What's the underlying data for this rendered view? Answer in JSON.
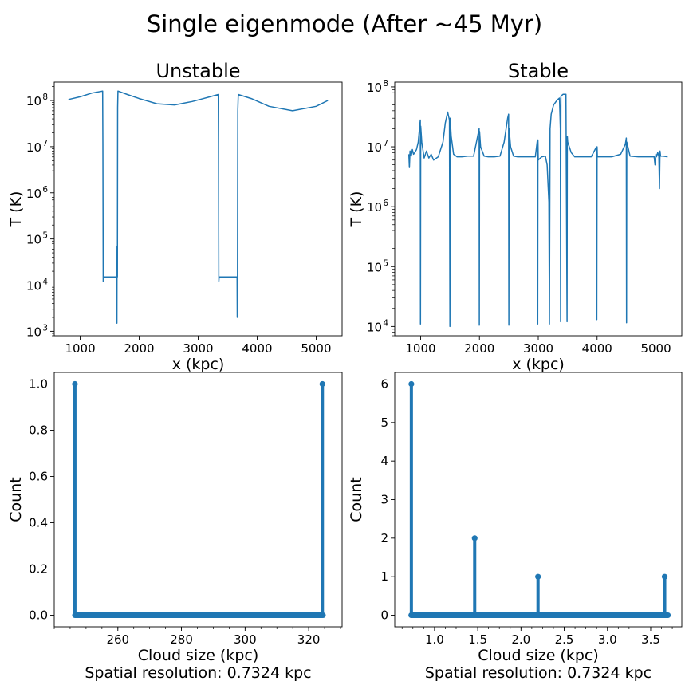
{
  "figure": {
    "suptitle": "Single eigenmode (After ~45 Myr)"
  },
  "chart_data": [
    {
      "id": "p1",
      "type": "line",
      "title": "Unstable",
      "xlabel": "x (kpc)",
      "ylabel": "T (K)",
      "yscale": "log",
      "xlim": [
        560,
        5440
      ],
      "ylim": [
        800,
        250000000
      ],
      "xticks": [
        1000,
        2000,
        3000,
        4000,
        5000
      ],
      "yticks": [
        {
          "mant": "10",
          "exp": "3",
          "value": 1000
        },
        {
          "mant": "10",
          "exp": "4",
          "value": 10000
        },
        {
          "mant": "10",
          "exp": "5",
          "value": 100000
        },
        {
          "mant": "10",
          "exp": "6",
          "value": 1000000
        },
        {
          "mant": "10",
          "exp": "7",
          "value": 10000000
        },
        {
          "mant": "10",
          "exp": "8",
          "value": 100000000
        }
      ],
      "color": "#1f77b4",
      "x": [
        800,
        1000,
        1200,
        1380,
        1385,
        1390,
        1395,
        1620,
        1622,
        1625,
        1630,
        1635,
        1640,
        1800,
        2000,
        2300,
        2600,
        2900,
        3200,
        3340,
        3345,
        3350,
        3355,
        3660,
        3663,
        3667,
        3672,
        3680,
        3900,
        4200,
        4600,
        5000,
        5200
      ],
      "y": [
        105000000,
        120000000,
        145000000,
        160000000,
        12000000,
        12000,
        15000,
        15000,
        1500,
        70000,
        15000,
        70000000,
        160000000,
        135000000,
        110000000,
        85000000,
        80000000,
        95000000,
        120000000,
        135000000,
        12000000,
        12000,
        15000,
        15000,
        2000,
        14000,
        60000000,
        135000000,
        110000000,
        75000000,
        60000000,
        75000000,
        100000000
      ]
    },
    {
      "id": "p2",
      "type": "line",
      "title": "Stable",
      "xlabel": "x (kpc)",
      "ylabel": "T (K)",
      "yscale": "log",
      "xlim": [
        560,
        5440
      ],
      "ylim": [
        7000,
        120000000
      ],
      "xticks": [
        1000,
        2000,
        3000,
        4000,
        5000
      ],
      "yticks": [
        {
          "mant": "10",
          "exp": "4",
          "value": 10000
        },
        {
          "mant": "10",
          "exp": "5",
          "value": 100000
        },
        {
          "mant": "10",
          "exp": "6",
          "value": 1000000
        },
        {
          "mant": "10",
          "exp": "7",
          "value": 10000000
        },
        {
          "mant": "10",
          "exp": "8",
          "value": 100000000
        }
      ],
      "color": "#1f77b4",
      "x": [
        800,
        810,
        820,
        840,
        860,
        880,
        900,
        930,
        960,
        980,
        995,
        998,
        1002,
        1020,
        1060,
        1100,
        1140,
        1180,
        1220,
        1300,
        1380,
        1420,
        1460,
        1490,
        1498,
        1502,
        1520,
        1560,
        1620,
        1700,
        1800,
        1900,
        1970,
        1995,
        1998,
        2002,
        2020,
        2080,
        2150,
        2250,
        2350,
        2420,
        2480,
        2496,
        2500,
        2504,
        2530,
        2580,
        2650,
        2750,
        2850,
        2950,
        2985,
        2990,
        2994,
        3000,
        3060,
        3120,
        3150,
        3170,
        3180,
        3190,
        3200,
        3220,
        3260,
        3320,
        3360,
        3375,
        3380,
        3385,
        3420,
        3470,
        3490,
        3494,
        3500,
        3560,
        3620,
        3700,
        3800,
        3900,
        3990,
        3995,
        4000,
        4005,
        4100,
        4250,
        4400,
        4480,
        4496,
        4500,
        4504,
        4560,
        4700,
        4850,
        4970,
        4985,
        5000,
        5010,
        5030,
        5050,
        5060,
        5070,
        5080,
        5120,
        5200
      ],
      "y": [
        7500000,
        4500000,
        8500000,
        7000000,
        9000000,
        7500000,
        8000000,
        9000000,
        12000000,
        20000000,
        28000000,
        11000,
        22000000,
        12000000,
        6500000,
        8500000,
        6500000,
        7500000,
        6000000,
        6800000,
        12000000,
        25000000,
        38000000,
        28000000,
        10000,
        30000000,
        15000000,
        7500000,
        6800000,
        6800000,
        7000000,
        7000000,
        15000000,
        20000000,
        10500,
        18000000,
        10000000,
        7000000,
        6800000,
        6800000,
        7000000,
        12000000,
        30000000,
        35000000,
        10500,
        20000000,
        10000000,
        7000000,
        6800000,
        6800000,
        6800000,
        6800000,
        13000000,
        11000,
        13000000,
        6000000,
        6800000,
        7000000,
        5000000,
        2000000,
        1200000,
        11000,
        20000000,
        35000000,
        50000000,
        60000000,
        65000000,
        20000000,
        12000,
        70000000,
        75000000,
        75000000,
        12000,
        15000000,
        12000000,
        8000000,
        6800000,
        6800000,
        6800000,
        6800000,
        10000000,
        13000,
        10000000,
        6800000,
        6800000,
        6800000,
        7500000,
        11000000,
        14000000,
        11500,
        12000000,
        7000000,
        6800000,
        6800000,
        6800000,
        5000000,
        7500000,
        6800000,
        8000000,
        7000000,
        2000000,
        8500000,
        7000000,
        7000000,
        6800000
      ]
    },
    {
      "id": "p3",
      "type": "stem",
      "xlabel": "Cloud size (kpc)",
      "xlabel2": "Spatial resolution: 0.7324 kpc",
      "ylabel": "Count",
      "xlim": [
        240,
        330.5
      ],
      "ylim": [
        -0.05,
        1.05
      ],
      "xticks": [
        "260",
        "280",
        "300",
        "320"
      ],
      "xtick_values": [
        260,
        280,
        300,
        320
      ],
      "yticks": [
        "0.0",
        "0.2",
        "0.4",
        "0.6",
        "0.8",
        "1.0"
      ],
      "ytick_values": [
        0,
        0.2,
        0.4,
        0.6,
        0.8,
        1.0
      ],
      "color": "#1f77b4",
      "baseline_range": [
        246.5,
        324.5
      ],
      "points": [
        {
          "x": 246.5,
          "y": 1
        },
        {
          "x": 324.3,
          "y": 1
        }
      ]
    },
    {
      "id": "p4",
      "type": "stem",
      "xlabel": "Cloud size (kpc)",
      "xlabel2": "Spatial resolution: 0.7324 kpc",
      "ylabel": "Count",
      "xlim": [
        0.54,
        3.86
      ],
      "ylim": [
        -0.3,
        6.3
      ],
      "xticks": [
        "1.0",
        "1.5",
        "2.0",
        "2.5",
        "3.0",
        "3.5"
      ],
      "xtick_values": [
        1.0,
        1.5,
        2.0,
        2.5,
        3.0,
        3.5
      ],
      "yticks": [
        "0",
        "1",
        "2",
        "3",
        "4",
        "5",
        "6"
      ],
      "ytick_values": [
        0,
        1,
        2,
        3,
        4,
        5,
        6
      ],
      "color": "#1f77b4",
      "baseline_range": [
        0.73,
        3.7
      ],
      "points": [
        {
          "x": 0.7324,
          "y": 6
        },
        {
          "x": 1.4648,
          "y": 2
        },
        {
          "x": 2.1972,
          "y": 1
        },
        {
          "x": 3.662,
          "y": 1
        }
      ]
    }
  ]
}
